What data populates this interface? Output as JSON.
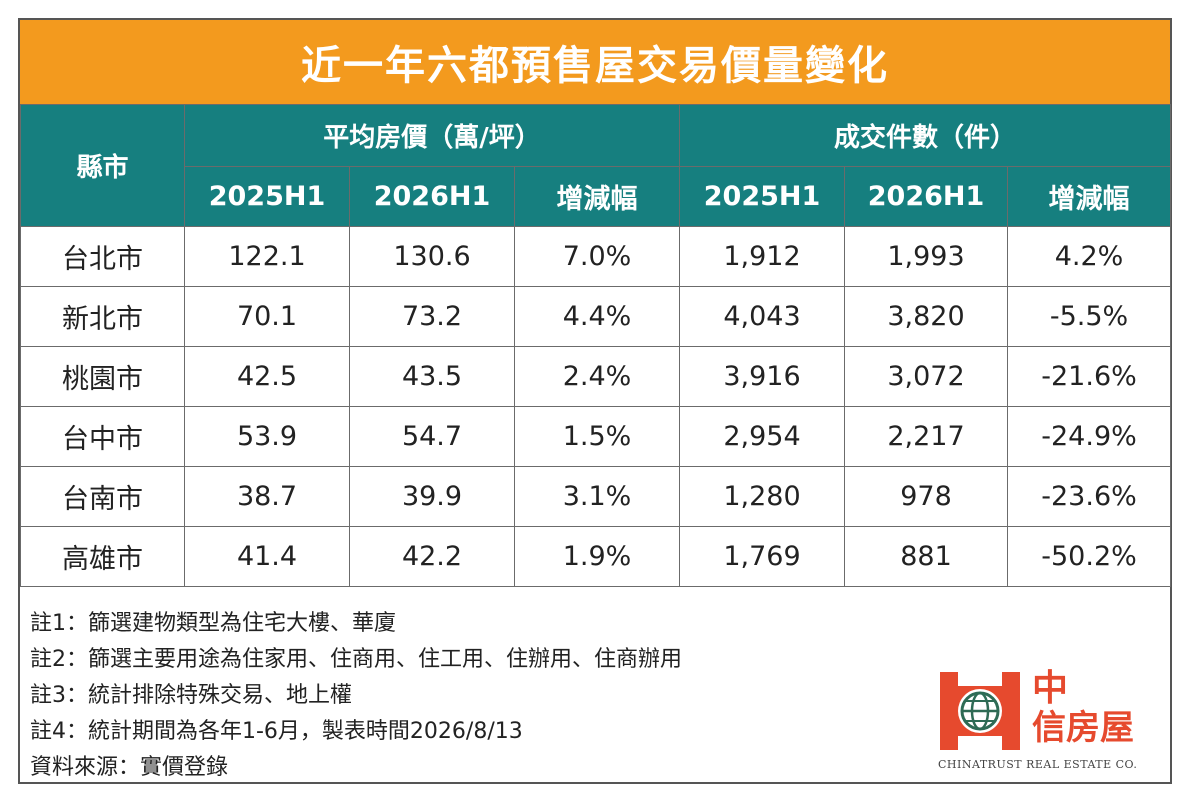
{
  "title": "近一年六都預售屋交易價量變化",
  "header": {
    "city": "縣市",
    "group_price": "平均房價（萬/坪）",
    "group_volume": "成交件數（件）",
    "col_2025": "2025H1",
    "col_2026": "2026H1",
    "col_change": "增減幅"
  },
  "rows": [
    {
      "city": "台北市",
      "p2025": "122.1",
      "p2026": "130.6",
      "pchg": "7.0%",
      "v2025": "1,912",
      "v2026": "1,993",
      "vchg": "4.2%"
    },
    {
      "city": "新北市",
      "p2025": "70.1",
      "p2026": "73.2",
      "pchg": "4.4%",
      "v2025": "4,043",
      "v2026": "3,820",
      "vchg": "-5.5%"
    },
    {
      "city": "桃園市",
      "p2025": "42.5",
      "p2026": "43.5",
      "pchg": "2.4%",
      "v2025": "3,916",
      "v2026": "3,072",
      "vchg": "-21.6%"
    },
    {
      "city": "台中市",
      "p2025": "53.9",
      "p2026": "54.7",
      "pchg": "1.5%",
      "v2025": "2,954",
      "v2026": "2,217",
      "vchg": "-24.9%"
    },
    {
      "city": "台南市",
      "p2025": "38.7",
      "p2026": "39.9",
      "pchg": "3.1%",
      "v2025": "1,280",
      "v2026": "978",
      "vchg": "-23.6%"
    },
    {
      "city": "高雄市",
      "p2025": "41.4",
      "p2026": "42.2",
      "pchg": "1.9%",
      "v2025": "1,769",
      "v2026": "881",
      "vchg": "-50.2%"
    }
  ],
  "notes": [
    "註1：篩選建物類型為住宅大樓、華廈",
    "註2：篩選主要用途為住家用、住商用、住工用、住辦用、住商辦用",
    "註3：統計排除特殊交易、地上權",
    "註4：統計期間為各年1-6月，製表時間2026/8/13",
    "資料來源：實價登錄"
  ],
  "logo": {
    "cn_line1": "中",
    "cn_line2": "信房屋",
    "en": "CHINATRUST REAL ESTATE CO.",
    "icon": "globe-logo-icon"
  },
  "colors": {
    "title_bg": "#f39a1e",
    "header_bg": "#167f7f",
    "increase": "#e0322f",
    "decrease": "#2fa043",
    "logo": "#e64a2e"
  }
}
